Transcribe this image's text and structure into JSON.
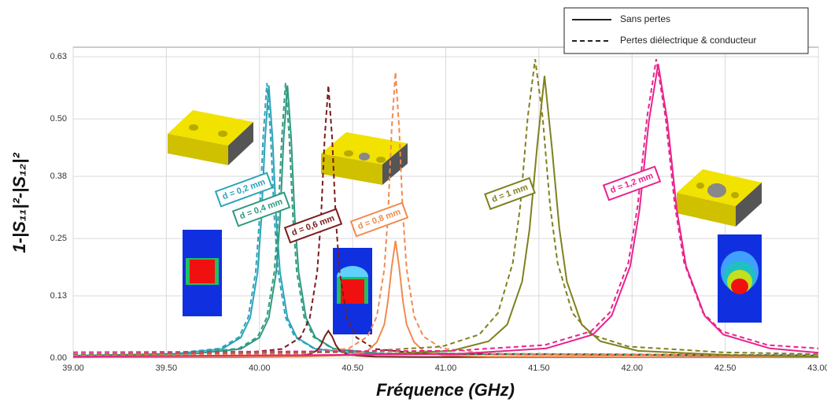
{
  "chart_data": {
    "type": "line",
    "x_label": "Fréquence (GHz)",
    "y_label": "1-|S₁₁|²-|S₁₂|²",
    "xlim": [
      39,
      43
    ],
    "ylim": [
      0,
      0.65
    ],
    "xticks": [
      {
        "value": 39,
        "label": "39.00"
      },
      {
        "value": 39.5,
        "label": "39.50"
      },
      {
        "value": 40,
        "label": "40.00"
      },
      {
        "value": 40.5,
        "label": "40.50"
      },
      {
        "value": 41,
        "label": "41.00"
      },
      {
        "value": 41.5,
        "label": "41.50"
      },
      {
        "value": 42,
        "label": "42.00"
      },
      {
        "value": 42.5,
        "label": "42.50"
      },
      {
        "value": 43,
        "label": "43.00"
      }
    ],
    "yticks": [
      {
        "value": 0,
        "label": "0.00"
      },
      0.13,
      0.25,
      0.38,
      {
        "value": 0.5,
        "label": "0.50"
      },
      0.63
    ],
    "grid": true,
    "legend": {
      "corner": "top-right",
      "entries": [
        {
          "label": "Sans pertes",
          "dash": "solid"
        },
        {
          "label": "Pertes diélectrique & conducteur",
          "dash": "dashed"
        }
      ]
    },
    "series": [
      {
        "name": "d = 0,2 mm",
        "color": "#2ba3b9",
        "lines": [
          {
            "dash": "solid",
            "x": [
              39.0,
              39.55,
              39.8,
              39.9,
              39.95,
              39.99,
              40.01,
              40.03,
              40.05,
              40.07,
              40.09,
              40.11,
              40.15,
              40.2,
              40.3,
              40.55,
              43.0
            ],
            "values": [
              0.005,
              0.009,
              0.019,
              0.043,
              0.084,
              0.18,
              0.29,
              0.46,
              0.57,
              0.46,
              0.29,
              0.18,
              0.084,
              0.043,
              0.019,
              0.009,
              0.005
            ]
          },
          {
            "dash": "dashed",
            "x": [
              39.0,
              39.54,
              39.79,
              39.89,
              39.94,
              39.98,
              40.0,
              40.02,
              40.04,
              40.06,
              40.08,
              40.1,
              40.14,
              40.19,
              40.29,
              40.54,
              43.0
            ],
            "values": [
              0.006,
              0.01,
              0.02,
              0.044,
              0.085,
              0.181,
              0.292,
              0.462,
              0.575,
              0.462,
              0.292,
              0.181,
              0.085,
              0.044,
              0.02,
              0.01,
              0.006
            ]
          }
        ]
      },
      {
        "name": "d = 0,4 mm",
        "color": "#2f9a7f",
        "lines": [
          {
            "dash": "solid",
            "x": [
              39.0,
              39.65,
              39.9,
              40.0,
              40.05,
              40.09,
              40.11,
              40.13,
              40.15,
              40.17,
              40.19,
              40.21,
              40.25,
              40.3,
              40.4,
              40.65,
              43.0
            ],
            "values": [
              0.005,
              0.009,
              0.019,
              0.043,
              0.084,
              0.18,
              0.29,
              0.46,
              0.57,
              0.46,
              0.29,
              0.18,
              0.084,
              0.043,
              0.019,
              0.009,
              0.005
            ]
          },
          {
            "dash": "dashed",
            "x": [
              39.0,
              39.64,
              39.89,
              39.99,
              40.04,
              40.08,
              40.1,
              40.12,
              40.14,
              40.16,
              40.18,
              40.2,
              40.24,
              40.29,
              40.39,
              40.64,
              43.0
            ],
            "values": [
              0.006,
              0.01,
              0.02,
              0.044,
              0.085,
              0.181,
              0.292,
              0.462,
              0.575,
              0.462,
              0.292,
              0.181,
              0.085,
              0.044,
              0.02,
              0.01,
              0.006
            ]
          }
        ]
      },
      {
        "name": "d = 0,6 mm",
        "color": "#7b1c1c",
        "lines": [
          {
            "dash": "solid",
            "x": [
              39.0,
              39.87,
              40.12,
              40.22,
              40.27,
              40.31,
              40.33,
              40.35,
              40.37,
              40.39,
              40.41,
              40.43,
              40.47,
              40.52,
              40.62,
              40.87,
              43.0
            ],
            "values": [
              0.002,
              0.002,
              0.003,
              0.005,
              0.008,
              0.016,
              0.027,
              0.045,
              0.057,
              0.045,
              0.027,
              0.016,
              0.008,
              0.005,
              0.003,
              0.002,
              0.002
            ]
          },
          {
            "dash": "dashed",
            "x": [
              39.0,
              39.87,
              40.12,
              40.22,
              40.27,
              40.31,
              40.33,
              40.35,
              40.37,
              40.39,
              40.41,
              40.43,
              40.47,
              40.52,
              40.62,
              40.87,
              43.0
            ],
            "values": [
              0.005,
              0.009,
              0.019,
              0.043,
              0.084,
              0.18,
              0.29,
              0.46,
              0.57,
              0.46,
              0.29,
              0.18,
              0.084,
              0.043,
              0.019,
              0.009,
              0.005
            ]
          }
        ]
      },
      {
        "name": "d = 0,8 mm",
        "color": "#f28a4e",
        "lines": [
          {
            "dash": "solid",
            "x": [
              39.0,
              40.23,
              40.48,
              40.58,
              40.63,
              40.67,
              40.69,
              40.71,
              40.73,
              40.75,
              40.77,
              40.79,
              40.83,
              40.88,
              40.98,
              41.23,
              43.0
            ],
            "values": [
              0.002,
              0.003,
              0.006,
              0.015,
              0.033,
              0.07,
              0.12,
              0.19,
              0.245,
              0.19,
              0.12,
              0.07,
              0.033,
              0.015,
              0.006,
              0.003,
              0.002
            ]
          },
          {
            "dash": "dashed",
            "x": [
              39.0,
              40.23,
              40.48,
              40.58,
              40.63,
              40.67,
              40.69,
              40.71,
              40.73,
              40.75,
              40.77,
              40.79,
              40.83,
              40.88,
              40.98,
              41.23,
              43.0
            ],
            "values": [
              0.005,
              0.009,
              0.02,
              0.045,
              0.087,
              0.186,
              0.3,
              0.48,
              0.598,
              0.48,
              0.3,
              0.186,
              0.087,
              0.045,
              0.02,
              0.009,
              0.005
            ]
          }
        ]
      },
      {
        "name": "d = 1  mm",
        "color": "#80801f",
        "lines": [
          {
            "dash": "solid",
            "x": [
              39.0,
              40.53,
              41.03,
              41.23,
              41.33,
              41.41,
              41.45,
              41.49,
              41.53,
              41.57,
              41.61,
              41.65,
              41.73,
              41.83,
              42.03,
              42.53,
              43.0
            ],
            "values": [
              0.003,
              0.006,
              0.015,
              0.035,
              0.07,
              0.16,
              0.27,
              0.44,
              0.59,
              0.44,
              0.27,
              0.16,
              0.07,
              0.035,
              0.015,
              0.006,
              0.003
            ]
          },
          {
            "dash": "dashed",
            "x": [
              39.0,
              40.48,
              40.98,
              41.18,
              41.28,
              41.36,
              41.4,
              41.44,
              41.48,
              41.52,
              41.56,
              41.6,
              41.68,
              41.78,
              41.98,
              42.48,
              43.0
            ],
            "values": [
              0.008,
              0.012,
              0.024,
              0.049,
              0.094,
              0.199,
              0.318,
              0.504,
              0.625,
              0.504,
              0.318,
              0.199,
              0.094,
              0.049,
              0.024,
              0.012,
              0.008
            ]
          }
        ]
      },
      {
        "name": "d = 1,2  mm",
        "color": "#e8238d",
        "lines": [
          {
            "dash": "solid",
            "x": [
              39.0,
              41.04,
              41.54,
              41.79,
              41.89,
              41.99,
              42.04,
              42.09,
              42.14,
              42.19,
              42.24,
              42.29,
              42.39,
              42.49,
              42.74,
              43.0
            ],
            "values": [
              0.003,
              0.008,
              0.02,
              0.049,
              0.088,
              0.192,
              0.31,
              0.495,
              0.615,
              0.495,
              0.31,
              0.192,
              0.088,
              0.049,
              0.02,
              0.011
            ]
          },
          {
            "dash": "dashed",
            "x": [
              39.0,
              41.03,
              41.53,
              41.78,
              41.88,
              41.98,
              42.03,
              42.08,
              42.13,
              42.18,
              42.23,
              42.28,
              42.38,
              42.48,
              42.73,
              43.0
            ],
            "values": [
              0.012,
              0.015,
              0.027,
              0.056,
              0.095,
              0.199,
              0.318,
              0.502,
              0.625,
              0.502,
              0.318,
              0.199,
              0.095,
              0.056,
              0.027,
              0.02
            ]
          }
        ]
      }
    ]
  }
}
